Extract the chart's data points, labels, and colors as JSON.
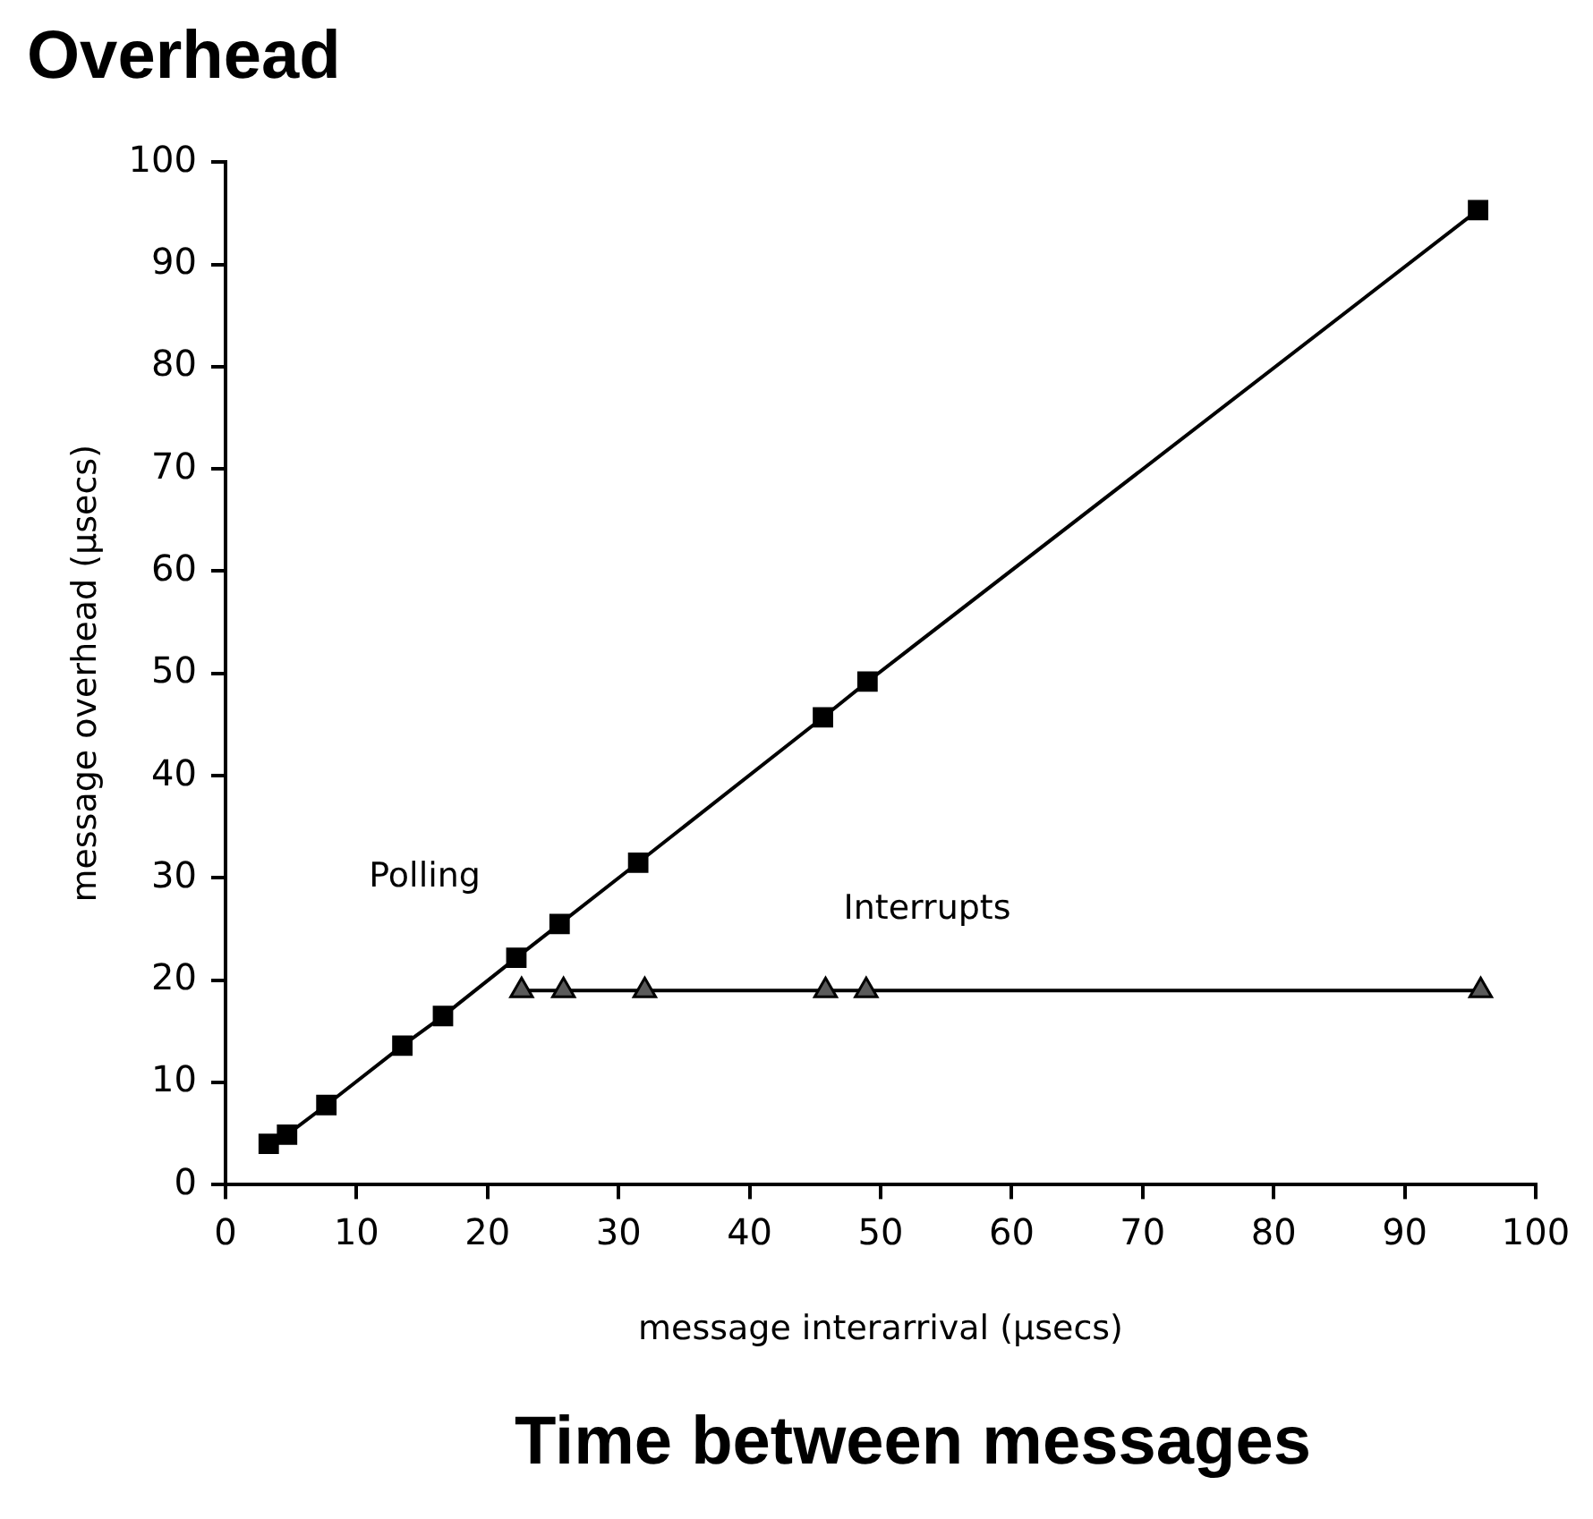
{
  "chart_data": {
    "type": "line",
    "title": "Overhead",
    "xlabel": "message interarrival (µsecs)",
    "ylabel": "message overhead (µsecs)",
    "annotations": [
      "Time between messages"
    ],
    "xlim": [
      0,
      100
    ],
    "xticks": [
      0,
      10,
      20,
      30,
      40,
      50,
      60,
      70,
      80,
      90,
      100
    ],
    "ylim": [
      0,
      100
    ],
    "yticks": [
      0,
      10,
      20,
      30,
      40,
      50,
      60,
      70,
      80,
      90,
      100
    ],
    "legend": false,
    "series": [
      {
        "name": "Polling",
        "color": "#000000",
        "marker": "square",
        "x": [
          3.3,
          4.7,
          7.7,
          13.5,
          16.6,
          22.2,
          25.5,
          31.5,
          45.6,
          49,
          95.6
        ],
        "values": [
          4,
          4.9,
          7.8,
          13.6,
          16.5,
          22.2,
          25.5,
          31.5,
          45.7,
          49.2,
          95.3
        ]
      },
      {
        "name": "Interrupts",
        "color": "#5a5a5a",
        "marker": "triangle",
        "x": [
          22.6,
          25.8,
          32,
          45.8,
          48.9,
          95.8
        ],
        "values": [
          19,
          19,
          19,
          19,
          19,
          19
        ]
      }
    ]
  }
}
